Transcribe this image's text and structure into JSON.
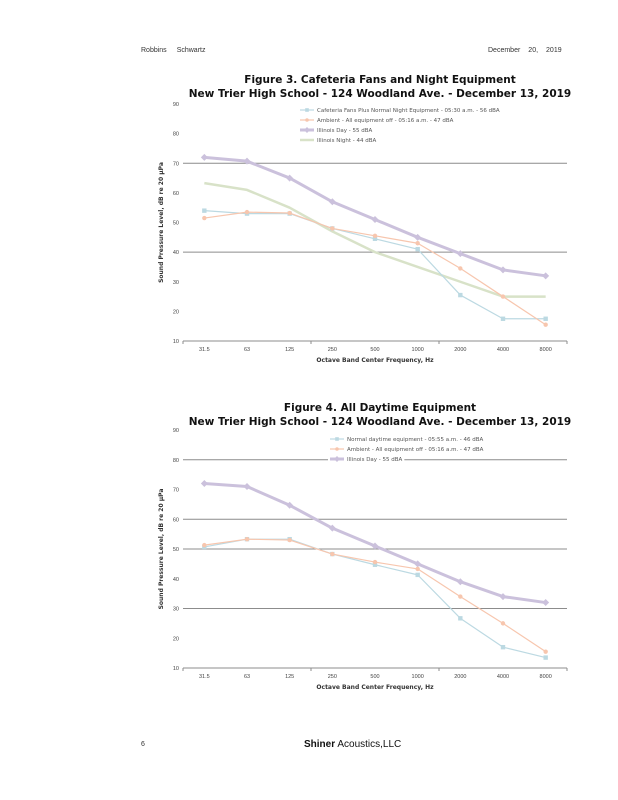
{
  "header": {
    "author_first": "Robbins",
    "author_last": "Schwartz",
    "date_month": "December",
    "date_day": "20,",
    "date_year": "2019"
  },
  "footer": {
    "page_number": "6",
    "company_bold": "Shiner",
    "company_rest": "Acoustics,LLC"
  },
  "colors": {
    "illinois_day": "#cbc1dc",
    "illinois_night": "#d8e2c8",
    "equipment": "#bcd9e2",
    "ambient": "#f7c6ae",
    "gridline": "#8c8c8c",
    "axis": "#8c8c8c"
  },
  "chart_data": [
    {
      "type": "line",
      "title": "Figure 3.  Cafeteria Fans and Night Equipment",
      "subtitle": "New Trier High School - 124 Woodland Ave. - December 13, 2019",
      "xlabel": "Octave Band Center Frequency, Hz",
      "ylabel": "Sound Pressure Level, dB re 20 μPa",
      "categories": [
        "31.5",
        "63",
        "125",
        "250",
        "500",
        "1000",
        "2000",
        "4000",
        "8000"
      ],
      "ylim": [
        10,
        90
      ],
      "yticks": [
        "10",
        "20",
        "30",
        "40",
        "50",
        "60",
        "70",
        "80",
        "90"
      ],
      "gridlines": [
        40,
        70
      ],
      "legend_position": "top-right",
      "series": [
        {
          "name": "Cafeteria Fans Plus Normal Night Equipment - 05:30 a.m. - 56 dBA",
          "color_key": "equipment",
          "marker": "square",
          "width": 1.2,
          "values": [
            54,
            53,
            53,
            48,
            44.5,
            41,
            25.5,
            17.5,
            17.5
          ]
        },
        {
          "name": "Ambient - All equipment off - 05:16 a.m. - 47 dBA",
          "color_key": "ambient",
          "marker": "circle",
          "width": 1.2,
          "values": [
            51.5,
            53.5,
            53.2,
            48,
            45.5,
            43,
            34.5,
            25,
            15.5
          ]
        },
        {
          "name": "Illinois Day - 55 dBA",
          "color_key": "illinois_day",
          "marker": "diamond",
          "width": 3,
          "values": [
            72,
            70.7,
            65,
            57,
            51,
            45,
            39.5,
            34,
            32
          ]
        },
        {
          "name": "Illinois Night - 44 dBA",
          "color_key": "illinois_night",
          "marker": "none",
          "width": 2.5,
          "values": [
            63.3,
            61,
            55,
            47,
            40,
            35,
            30,
            25,
            25
          ]
        }
      ]
    },
    {
      "type": "line",
      "title": "Figure 4.  All Daytime Equipment",
      "subtitle": "New Trier High School - 124 Woodland Ave. - December 13, 2019",
      "xlabel": "Octave Band Center Frequency, Hz",
      "ylabel": "Sound Pressure Level, dB re 20 μPa",
      "categories": [
        "31.5",
        "63",
        "125",
        "250",
        "500",
        "1000",
        "2000",
        "4000",
        "8000"
      ],
      "ylim": [
        10,
        90
      ],
      "yticks": [
        "10",
        "20",
        "30",
        "40",
        "50",
        "60",
        "70",
        "80",
        "90"
      ],
      "gridlines": [
        30,
        50,
        60,
        80
      ],
      "legend_position": "top-right",
      "series": [
        {
          "name": "Normal daytime equipment - 05:55 a.m. - 46 dBA",
          "color_key": "equipment",
          "marker": "square",
          "width": 1.2,
          "values": [
            50.7,
            53.3,
            53.3,
            48.3,
            44.7,
            41.3,
            26.7,
            17,
            13.5
          ]
        },
        {
          "name": "Ambient - All equipment off - 05:16 a.m. - 47 dBA",
          "color_key": "ambient",
          "marker": "circle",
          "width": 1.2,
          "values": [
            51.3,
            53.3,
            53,
            48.3,
            45.6,
            43.3,
            34,
            25,
            15.5
          ]
        },
        {
          "name": "Illinois Day - 55 dBA",
          "color_key": "illinois_day",
          "marker": "diamond",
          "width": 3,
          "values": [
            72,
            71,
            64.7,
            57,
            51,
            45,
            39,
            34,
            32
          ]
        }
      ]
    }
  ]
}
